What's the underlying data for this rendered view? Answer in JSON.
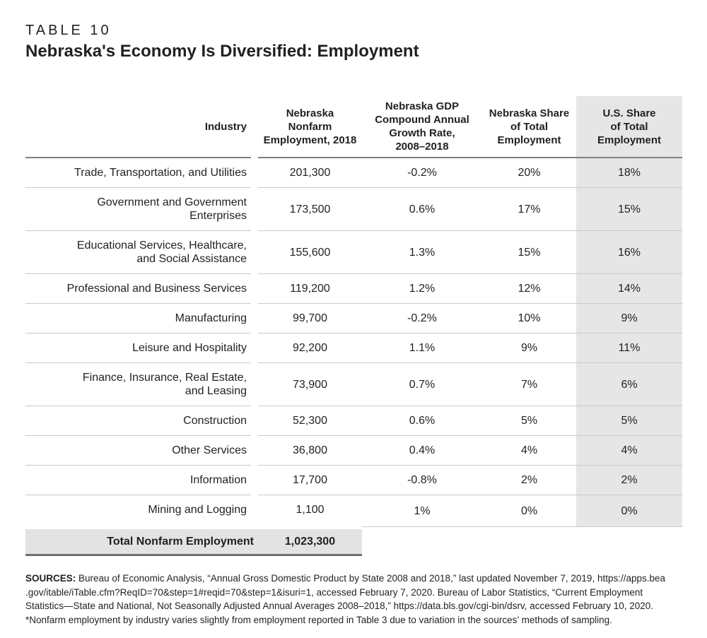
{
  "page": {
    "kicker": "TABLE 10",
    "title": "Nebraska's Economy Is Diversified: Employment"
  },
  "table": {
    "headers": [
      "Industry",
      "Nebraska\nNonfarm\nEmployment, 2018",
      "Nebraska GDP\nCompound Annual\nGrowth Rate,\n2008–2018",
      "Nebraska Share\nof Total\nEmployment",
      "U.S. Share\nof Total\nEmployment"
    ],
    "rows": [
      {
        "cells": [
          "Trade, Transportation, and Utilities",
          "201,300",
          "-0.2%",
          "20%",
          "18%"
        ]
      },
      {
        "cells": [
          "Government and Government\nEnterprises",
          "173,500",
          "0.6%",
          "17%",
          "15%"
        ]
      },
      {
        "cells": [
          "Educational Services, Healthcare,\nand Social Assistance",
          "155,600",
          "1.3%",
          "15%",
          "16%"
        ]
      },
      {
        "cells": [
          "Professional and Business Services",
          "119,200",
          "1.2%",
          "12%",
          "14%"
        ]
      },
      {
        "cells": [
          "Manufacturing",
          "99,700",
          "-0.2%",
          "10%",
          "9%"
        ]
      },
      {
        "cells": [
          "Leisure and Hospitality",
          "92,200",
          "1.1%",
          "9%",
          "11%"
        ]
      },
      {
        "cells": [
          "Finance, Insurance, Real Estate,\nand Leasing",
          "73,900",
          "0.7%",
          "7%",
          "6%"
        ]
      },
      {
        "cells": [
          "Construction",
          "52,300",
          "0.6%",
          "5%",
          "5%"
        ]
      },
      {
        "cells": [
          "Other Services",
          "36,800",
          "0.4%",
          "4%",
          "4%"
        ]
      },
      {
        "cells": [
          "Information",
          "17,700",
          "-0.8%",
          "2%",
          "2%"
        ]
      },
      {
        "cells": [
          "Mining and Logging",
          "1,100",
          "1%",
          "0%",
          "0%"
        ]
      }
    ],
    "total": {
      "label": "Total Nonfarm Employment",
      "value": "1,023,300"
    }
  },
  "footer": {
    "sources_label": "SOURCES:",
    "lines": [
      "Bureau of Economic Analysis, “Annual Gross Domestic Product by State 2008 and 2018,” last updated November 7, 2019, https://apps.bea",
      ".gov/itable/iTable.cfm?ReqID=70&step=1#reqid=70&step=1&isuri=1, accessed February 7, 2020. Bureau of Labor Statistics, “Current Employment",
      "Statistics—State and National, Not Seasonally Adjusted Annual Averages 2008–2018,” https://data.bls.gov/cgi-bin/dsrv, accessed February 10, 2020.",
      "*Nonfarm employment by industry varies slightly from employment reported in Table 3 due to variation in the sources’ methods of sampling."
    ]
  },
  "colors": {
    "text": "#231f20",
    "us_share_column_bg": "#e6e6e6",
    "total_band_bg": "#e3e3e3",
    "row_divider": "#c9c9c9",
    "header_rule": "#808080",
    "total_bottom_rule": "#6e6e6e"
  }
}
